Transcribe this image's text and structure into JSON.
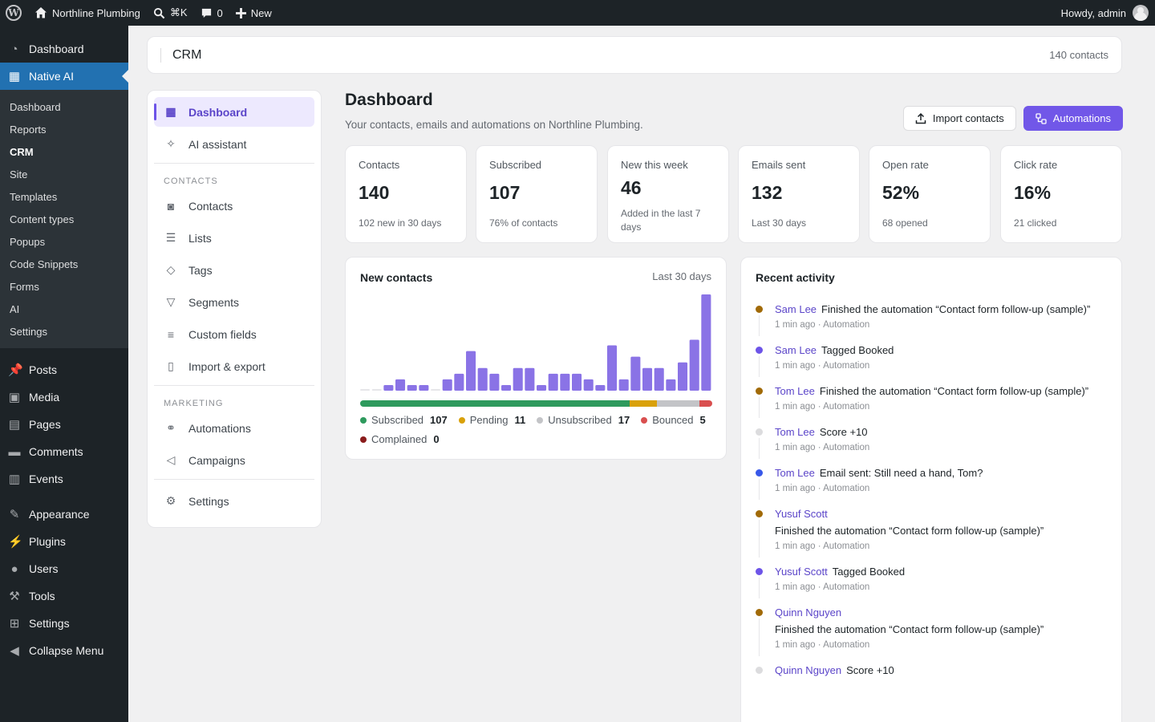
{
  "adminbar": {
    "site_name": "Northline Plumbing",
    "search_shortcut": "⌘K",
    "comments_count": "0",
    "new_label": "New",
    "howdy": "Howdy, admin"
  },
  "adminmenu": {
    "dashboard": "Dashboard",
    "native_ai": "Native AI",
    "submenu": [
      "Dashboard",
      "Reports",
      "CRM",
      "Site",
      "Templates",
      "Content types",
      "Popups",
      "Code Snippets",
      "Forms",
      "AI",
      "Settings"
    ],
    "posts": "Posts",
    "media": "Media",
    "pages": "Pages",
    "comments": "Comments",
    "events": "Events",
    "appearance": "Appearance",
    "plugins": "Plugins",
    "users": "Users",
    "tools": "Tools",
    "settings": "Settings",
    "collapse": "Collapse Menu"
  },
  "topcard": {
    "title": "CRM",
    "count": "140 contacts"
  },
  "crmnav": {
    "dashboard": "Dashboard",
    "ai_assistant": "AI assistant",
    "contacts_heading": "CONTACTS",
    "contacts": "Contacts",
    "lists": "Lists",
    "tags": "Tags",
    "segments": "Segments",
    "custom_fields": "Custom fields",
    "import_export": "Import & export",
    "marketing_heading": "MARKETING",
    "automations": "Automations",
    "campaigns": "Campaigns",
    "settings": "Settings"
  },
  "page": {
    "title": "Dashboard",
    "subtitle": "Your contacts, emails and automations on Northline Plumbing.",
    "import_btn": "Import contacts",
    "automations_btn": "Automations"
  },
  "stats": [
    {
      "label": "Contacts",
      "value": "140",
      "sub": "102 new in 30 days"
    },
    {
      "label": "Subscribed",
      "value": "107",
      "sub": "76% of contacts"
    },
    {
      "label": "New this week",
      "value": "46",
      "sub": "Added in the last 7 days"
    },
    {
      "label": "Emails sent",
      "value": "132",
      "sub": "Last 30 days"
    },
    {
      "label": "Open rate",
      "value": "52%",
      "sub": "68 opened"
    },
    {
      "label": "Click rate",
      "value": "16%",
      "sub": "21 clicked"
    }
  ],
  "chart_card": {
    "title": "New contacts",
    "range": "Last 30 days"
  },
  "chart_data": {
    "type": "bar",
    "title": "New contacts",
    "xlabel": "",
    "ylabel": "",
    "values": [
      0,
      0,
      1,
      2,
      1,
      1,
      0,
      2,
      3,
      7,
      4,
      3,
      1,
      4,
      4,
      1,
      3,
      3,
      3,
      2,
      1,
      8,
      2,
      6,
      4,
      4,
      2,
      5,
      9,
      17
    ],
    "ylim": [
      0,
      17
    ],
    "bar_color": "#8a73e6",
    "zero_color": "#e6e6e9"
  },
  "status_breakdown": [
    {
      "label": "Subscribed",
      "count": "107",
      "value": 107,
      "color": "#2e9a5d"
    },
    {
      "label": "Pending",
      "count": "11",
      "value": 11,
      "color": "#d9a10a"
    },
    {
      "label": "Unsubscribed",
      "count": "17",
      "value": 17,
      "color": "#c3c4c7"
    },
    {
      "label": "Bounced",
      "count": "5",
      "value": 5,
      "color": "#d94f4f"
    },
    {
      "label": "Complained",
      "count": "0",
      "value": 0,
      "color": "#8a1c1c"
    }
  ],
  "activity": {
    "title": "Recent activity",
    "items": [
      {
        "name": "Sam Lee",
        "text": "Finished the automation “Contact form follow-up (sample)”",
        "meta": "1 min ago · Automation",
        "color": "#a16a07",
        "wrap": false
      },
      {
        "name": "Sam Lee",
        "text": "Tagged Booked",
        "meta": "1 min ago · Automation",
        "color": "#6d54e8",
        "wrap": false
      },
      {
        "name": "Tom Lee",
        "text": "Finished the automation “Contact form follow-up (sample)”",
        "meta": "1 min ago · Automation",
        "color": "#a16a07",
        "wrap": false
      },
      {
        "name": "Tom Lee",
        "text": "Score +10",
        "meta": "1 min ago · Automation",
        "color": "#dcdcde",
        "wrap": false
      },
      {
        "name": "Tom Lee",
        "text": "Email sent: Still need a hand, Tom?",
        "meta": "1 min ago · Automation",
        "color": "#3858e9",
        "wrap": false
      },
      {
        "name": "Yusuf Scott",
        "text": "Finished the automation “Contact form follow-up (sample)”",
        "meta": "1 min ago · Automation",
        "color": "#a16a07",
        "wrap": true
      },
      {
        "name": "Yusuf Scott",
        "text": "Tagged Booked",
        "meta": "1 min ago · Automation",
        "color": "#6d54e8",
        "wrap": false
      },
      {
        "name": "Quinn Nguyen",
        "text": "Finished the automation “Contact form follow-up (sample)”",
        "meta": "1 min ago · Automation",
        "color": "#a16a07",
        "wrap": true
      },
      {
        "name": "Quinn Nguyen",
        "text": "Score +10",
        "meta": "",
        "color": "#dcdcde",
        "wrap": false
      }
    ]
  }
}
